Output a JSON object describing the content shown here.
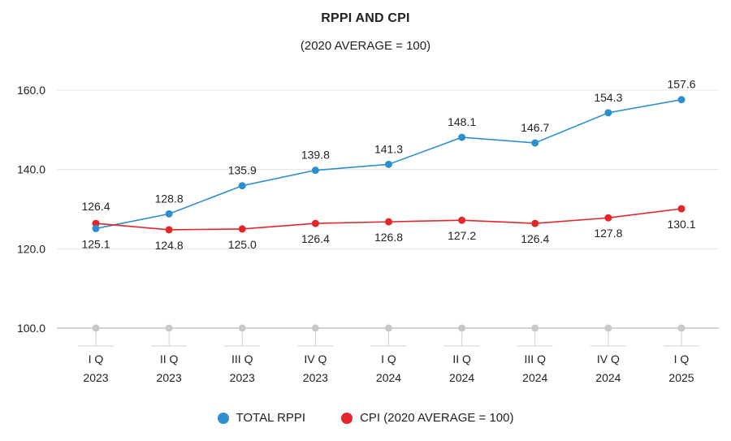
{
  "chart_data": {
    "type": "line",
    "title": "RPPI AND CPI",
    "subtitle": "(2020 AVERAGE = 100)",
    "categories": [
      [
        "I Q",
        "2023"
      ],
      [
        "II Q",
        "2023"
      ],
      [
        "III Q",
        "2023"
      ],
      [
        "IV Q",
        "2023"
      ],
      [
        "I Q",
        "2024"
      ],
      [
        "II Q",
        "2024"
      ],
      [
        "III Q",
        "2024"
      ],
      [
        "IV Q",
        "2024"
      ],
      [
        "I Q",
        "2025"
      ]
    ],
    "y_ticks": [
      "100.0",
      "120.0",
      "140.0",
      "160.0"
    ],
    "ylim": [
      100,
      160
    ],
    "grid": true,
    "legend_position": "bottom",
    "series": [
      {
        "name": "TOTAL RPPI",
        "color": "#2e8fce",
        "values": [
          125.1,
          128.8,
          135.9,
          139.8,
          141.3,
          148.1,
          146.7,
          154.3,
          157.6
        ],
        "labels": [
          "125.1",
          "128.8",
          "135.9",
          "139.8",
          "141.3",
          "148.1",
          "146.7",
          "154.3",
          "157.6"
        ]
      },
      {
        "name": "CPI (2020 AVERAGE = 100)",
        "color": "#e3262a",
        "values": [
          126.4,
          124.8,
          125.0,
          126.4,
          126.8,
          127.2,
          126.4,
          127.8,
          130.1
        ],
        "labels": [
          "126.4",
          "124.8",
          "125.0",
          "126.4",
          "126.8",
          "127.2",
          "126.4",
          "127.8",
          "130.1"
        ]
      }
    ],
    "baseline_marker_color": "#c8c8c8"
  }
}
